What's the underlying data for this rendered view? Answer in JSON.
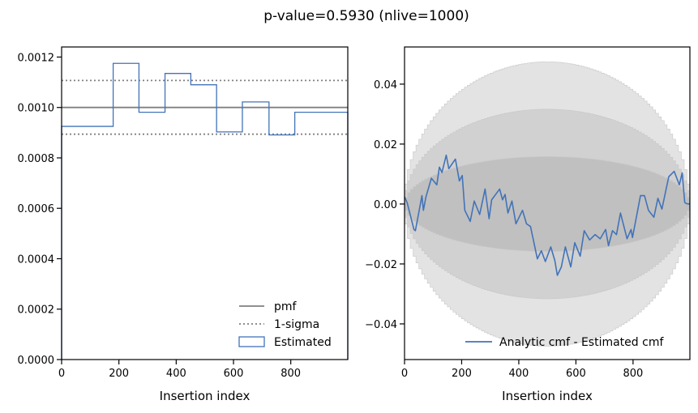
{
  "title": "p-value=0.5930 (nlive=1000)",
  "chart_data": [
    {
      "type": "line",
      "xlabel": "Insertion index",
      "ylabel": "",
      "xlim": [
        0,
        999
      ],
      "ylim": [
        0,
        0.00124
      ],
      "xticks": [
        0,
        200,
        400,
        600,
        800
      ],
      "yticks": [
        "0.0000",
        "0.0002",
        "0.0004",
        "0.0006",
        "0.0008",
        "0.0010",
        "0.0012"
      ],
      "grid": false,
      "legend_placement": "lower-right",
      "pmf": {
        "name": "pmf",
        "value": 0.001,
        "color": "#808080"
      },
      "sigma": {
        "name": "1-sigma",
        "values": [
          0.000894,
          0.001107
        ],
        "color": "#808080"
      },
      "estimated": {
        "name": "Estimated",
        "type": "step-histogram",
        "color": "#4273b8",
        "bin_edges": [
          0,
          180,
          270,
          361,
          451,
          541,
          631,
          724,
          814,
          999
        ],
        "values": [
          0.000925,
          0.001175,
          0.000981,
          0.001135,
          0.00109,
          0.000903,
          0.001022,
          0.000891,
          0.000981
        ]
      }
    },
    {
      "type": "line",
      "xlabel": "Insertion index",
      "ylabel": "",
      "xlim": [
        0,
        999
      ],
      "ylim": [
        -0.0519,
        0.0524
      ],
      "xticks": [
        0,
        200,
        400,
        600,
        800
      ],
      "yticks": [
        "0.04",
        "0.02",
        "0.00",
        "−0.02",
        "−0.04"
      ],
      "ytick_values": [
        0.04,
        0.02,
        0,
        -0.02,
        -0.04
      ],
      "grid": false,
      "legend_placement": "lower-right",
      "bands": {
        "sigma_levels": [
          3,
          2,
          1
        ],
        "nlive": 1000,
        "colors": [
          "#e3e3e3",
          "#d1d1d1",
          "#c0c0c0"
        ]
      },
      "series": [
        {
          "name": "Analytic cmf - Estimated cmf",
          "color": "#4273b8",
          "x": [
            0,
            9,
            33,
            38,
            61,
            66,
            75,
            94,
            113,
            122,
            131,
            146,
            155,
            178,
            192,
            202,
            211,
            230,
            244,
            263,
            282,
            296,
            305,
            333,
            343,
            352,
            362,
            376,
            390,
            413,
            427,
            441,
            451,
            465,
            479,
            493,
            512,
            526,
            535,
            549,
            563,
            582,
            596,
            615,
            629,
            648,
            667,
            685,
            704,
            714,
            728,
            742,
            756,
            779,
            793,
            798,
            826,
            840,
            854,
            873,
            887,
            901,
            925,
            944,
            962,
            972,
            981,
            988,
            999
          ],
          "y": [
            0.0024,
            0.0005,
            -0.0085,
            -0.0089,
            0.0028,
            -0.0021,
            0.0024,
            0.0086,
            0.0064,
            0.0123,
            0.0105,
            0.0163,
            0.0118,
            0.015,
            0.0077,
            0.0095,
            -0.0021,
            -0.0058,
            0.001,
            -0.0035,
            0.005,
            -0.0049,
            0.0014,
            0.005,
            0.0014,
            0.0032,
            -0.003,
            0.001,
            -0.0066,
            -0.0021,
            -0.0066,
            -0.0075,
            -0.012,
            -0.0183,
            -0.0156,
            -0.0192,
            -0.0143,
            -0.0188,
            -0.0238,
            -0.021,
            -0.0143,
            -0.021,
            -0.0129,
            -0.0174,
            -0.0089,
            -0.012,
            -0.0102,
            -0.0116,
            -0.0085,
            -0.0139,
            -0.0089,
            -0.0102,
            -0.003,
            -0.0116,
            -0.0085,
            -0.0112,
            0.0028,
            0.0028,
            -0.0021,
            -0.0044,
            0.0019,
            -0.0017,
            0.0091,
            0.0109,
            0.0064,
            0.0104,
            0.0005,
            0.0001,
            0.0
          ]
        }
      ]
    }
  ]
}
